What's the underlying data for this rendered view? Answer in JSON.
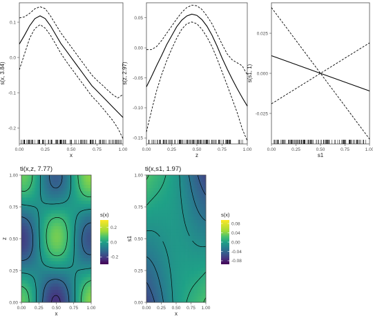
{
  "figure": {
    "background": "#ffffff",
    "panel_border": "#4d4d4d",
    "text_color": "#1a1a1a",
    "tick_color": "#4d4d4d",
    "line_color": "#000000"
  },
  "chart_data": [
    {
      "id": "smooth-x",
      "type": "line",
      "title": "",
      "xlabel": "x",
      "ylabel": "s(x, 3.84)",
      "xlim": [
        0,
        1
      ],
      "ylim": [
        -0.245,
        0.155
      ],
      "xticks": [
        "0.00",
        "0.25",
        "0.50",
        "0.75",
        "1.00"
      ],
      "xtick_values": [
        0,
        0.25,
        0.5,
        0.75,
        1
      ],
      "yticks": [
        "-0.2",
        "-0.1",
        "0.0",
        "0.1"
      ],
      "ytick_values": [
        -0.2,
        -0.1,
        0,
        0.1
      ],
      "x": [
        0,
        0.05,
        0.1,
        0.15,
        0.2,
        0.25,
        0.3,
        0.35,
        0.4,
        0.45,
        0.5,
        0.55,
        0.6,
        0.65,
        0.7,
        0.75,
        0.8,
        0.85,
        0.9,
        0.95,
        1
      ],
      "series": [
        {
          "style": "solid",
          "values": [
            0.038,
            0.063,
            0.09,
            0.11,
            0.118,
            0.11,
            0.09,
            0.065,
            0.04,
            0.02,
            0.0,
            -0.02,
            -0.04,
            -0.06,
            -0.08,
            -0.095,
            -0.11,
            -0.125,
            -0.14,
            -0.155,
            -0.17
          ]
        },
        {
          "style": "dashed",
          "values": [
            0.112,
            0.115,
            0.125,
            0.138,
            0.144,
            0.138,
            0.118,
            0.094,
            0.07,
            0.05,
            0.03,
            0.01,
            -0.01,
            -0.03,
            -0.05,
            -0.065,
            -0.078,
            -0.092,
            -0.105,
            -0.115,
            -0.105
          ]
        },
        {
          "style": "dashed",
          "values": [
            -0.035,
            0.01,
            0.055,
            0.082,
            0.093,
            0.083,
            0.063,
            0.038,
            0.012,
            -0.01,
            -0.03,
            -0.05,
            -0.07,
            -0.09,
            -0.11,
            -0.125,
            -0.142,
            -0.16,
            -0.178,
            -0.2,
            -0.23
          ]
        }
      ],
      "rug": true
    },
    {
      "id": "smooth-z",
      "type": "line",
      "title": "",
      "xlabel": "z",
      "ylabel": "s(z, 2.97)",
      "xlim": [
        0,
        1
      ],
      "ylim": [
        -0.16,
        0.075
      ],
      "xticks": [
        "0.00",
        "0.25",
        "0.50",
        "0.75",
        "1.00"
      ],
      "xtick_values": [
        0,
        0.25,
        0.5,
        0.75,
        1
      ],
      "yticks": [
        "-0.15",
        "-0.10",
        "-0.05",
        "0.00",
        "0.05"
      ],
      "ytick_values": [
        -0.15,
        -0.1,
        -0.05,
        0,
        0.05
      ],
      "x": [
        0,
        0.05,
        0.1,
        0.15,
        0.2,
        0.25,
        0.3,
        0.35,
        0.4,
        0.45,
        0.5,
        0.55,
        0.6,
        0.65,
        0.7,
        0.75,
        0.8,
        0.85,
        0.9,
        0.95,
        1
      ],
      "series": [
        {
          "style": "solid",
          "values": [
            -0.065,
            -0.048,
            -0.03,
            -0.013,
            0.005,
            0.02,
            0.035,
            0.046,
            0.053,
            0.056,
            0.054,
            0.047,
            0.036,
            0.021,
            0.003,
            -0.017,
            -0.035,
            -0.052,
            -0.068,
            -0.083,
            -0.097
          ]
        },
        {
          "style": "dashed",
          "values": [
            -0.003,
            -0.003,
            0.002,
            0.012,
            0.024,
            0.036,
            0.048,
            0.059,
            0.067,
            0.071,
            0.07,
            0.064,
            0.053,
            0.04,
            0.023,
            0.006,
            -0.01,
            -0.02,
            -0.025,
            -0.03,
            -0.045
          ]
        },
        {
          "style": "dashed",
          "values": [
            -0.14,
            -0.105,
            -0.072,
            -0.045,
            -0.022,
            -0.002,
            0.016,
            0.031,
            0.04,
            0.043,
            0.04,
            0.031,
            0.018,
            0.002,
            -0.018,
            -0.04,
            -0.062,
            -0.085,
            -0.108,
            -0.135,
            -0.155
          ]
        }
      ],
      "rug": true
    },
    {
      "id": "smooth-s1",
      "type": "line",
      "title": "",
      "xlabel": "s1",
      "ylabel": "s(s1, 1)",
      "xlim": [
        0,
        1
      ],
      "ylim": [
        -0.044,
        0.044
      ],
      "xticks": [
        "0.00",
        "0.25",
        "0.50",
        "0.75",
        "1.00"
      ],
      "xtick_values": [
        0,
        0.25,
        0.5,
        0.75,
        1
      ],
      "yticks": [
        "-0.025",
        "0.000",
        "0.025"
      ],
      "ytick_values": [
        -0.025,
        0,
        0.025
      ],
      "x": [
        0,
        1
      ],
      "series": [
        {
          "style": "solid",
          "values": [
            0.011,
            -0.011
          ]
        },
        {
          "style": "dashed",
          "values": [
            0.041,
            -0.041
          ]
        },
        {
          "style": "dashed",
          "values": [
            -0.019,
            0.019
          ]
        }
      ],
      "rug": true
    },
    {
      "id": "tensor-xz",
      "type": "heatmap",
      "title": "ti(x,z, 7.77)",
      "xlabel": "x",
      "ylabel": "z",
      "xlim": [
        0,
        1
      ],
      "ylim": [
        0,
        1
      ],
      "xticks": [
        "0.00",
        "0.25",
        "0.50",
        "0.75",
        "1.00"
      ],
      "xtick_values": [
        0,
        0.25,
        0.5,
        0.75,
        1
      ],
      "yticks": [
        "0.00",
        "0.25",
        "0.50",
        "0.75",
        "1.00"
      ],
      "ytick_values": [
        0,
        0.25,
        0.5,
        0.75,
        1
      ],
      "colorbar": {
        "title": "s(x)",
        "range": [
          -0.3,
          0.3
        ],
        "ticks": [
          "0.2",
          "0.0",
          "-0.2"
        ],
        "tick_values": [
          0.2,
          0,
          -0.2
        ]
      },
      "contours": [
        -0.2,
        -0.1,
        0,
        0.1,
        0.2
      ]
    },
    {
      "id": "tensor-xs1",
      "type": "heatmap",
      "title": "ti(x,s1, 1.97)",
      "xlabel": "x",
      "ylabel": "s1",
      "xlim": [
        0,
        1
      ],
      "ylim": [
        0,
        1
      ],
      "xticks": [
        "0.00",
        "0.25",
        "0.50",
        "0.75",
        "1.00"
      ],
      "xtick_values": [
        0,
        0.25,
        0.5,
        0.75,
        1
      ],
      "yticks": [
        "0.00",
        "0.25",
        "0.50",
        "0.75",
        "1.00"
      ],
      "ytick_values": [
        0,
        0.25,
        0.5,
        0.75,
        1
      ],
      "colorbar": {
        "title": "s(x)",
        "range": [
          -0.095,
          0.095
        ],
        "ticks": [
          "0.08",
          "0.04",
          "0.00",
          "-0.04",
          "-0.08"
        ],
        "tick_values": [
          0.08,
          0.04,
          0,
          -0.04,
          -0.08
        ]
      },
      "contours": [
        -0.06,
        -0.04,
        -0.02,
        0,
        0.02,
        0.04,
        0.06
      ]
    }
  ]
}
